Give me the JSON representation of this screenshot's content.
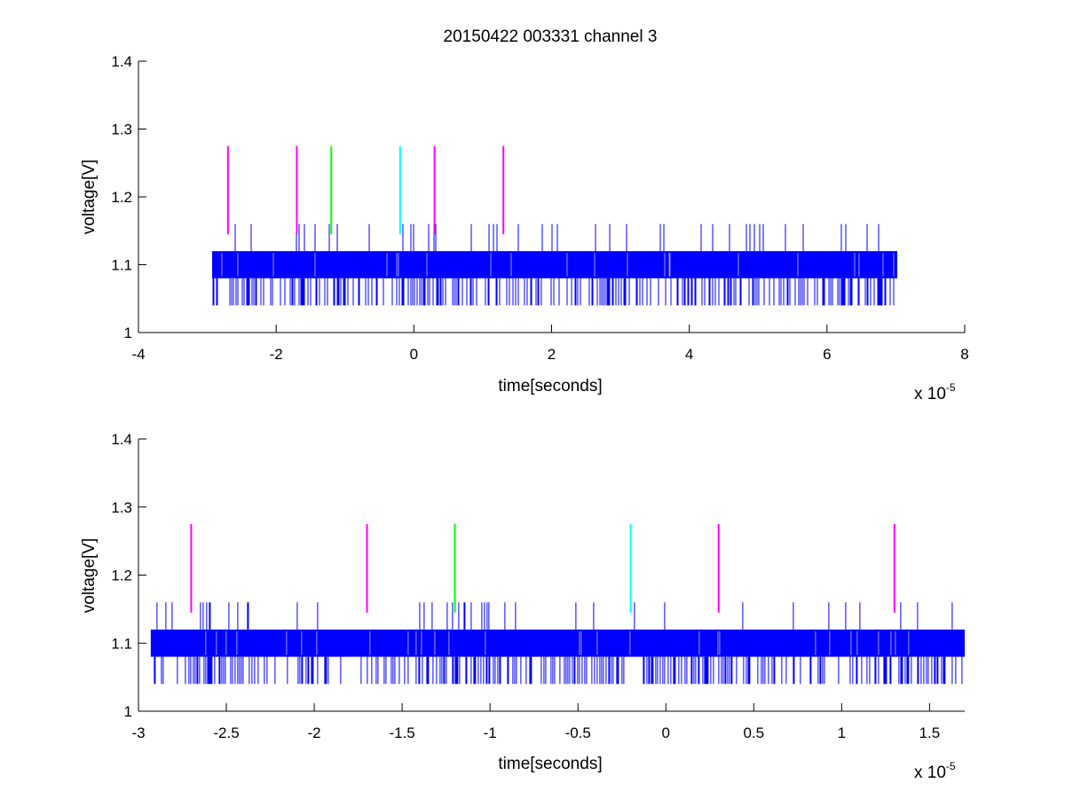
{
  "figure": {
    "title": "20150422 003331 channel 3",
    "background": "#ffffff"
  },
  "chart_data": [
    {
      "type": "line",
      "title": "20150422 003331 channel 3",
      "xlabel": "time[seconds]",
      "ylabel": "voltage[V]",
      "x_multiplier_label": "x 10",
      "x_multiplier_exponent": "-5",
      "xlim": [
        -4,
        8
      ],
      "ylim": [
        1,
        1.4
      ],
      "xticks": [
        -4,
        -2,
        0,
        2,
        4,
        6,
        8
      ],
      "xtick_labels": [
        "-4",
        "-2",
        "0",
        "2",
        "4",
        "6",
        "8"
      ],
      "yticks": [
        1,
        1.1,
        1.2,
        1.3,
        1.4
      ],
      "ytick_labels": [
        "1",
        "1.1",
        "1.2",
        "1.3",
        "1.4"
      ],
      "grid": false,
      "series": [
        {
          "signal": "digitized voltage trace",
          "color": "#0000ff",
          "x_range": [
            -2.93,
            7.02
          ],
          "levels": [
            1.04,
            1.08,
            1.12,
            1.16
          ],
          "band": [
            1.08,
            1.12
          ],
          "upper_spike_level": 1.16,
          "lower_spike_level": 1.04
        }
      ],
      "markers": [
        {
          "x": -2.7,
          "y0": 1.145,
          "y1": 1.275,
          "color": "#ff00ff"
        },
        {
          "x": -1.7,
          "y0": 1.145,
          "y1": 1.275,
          "color": "#ff00ff"
        },
        {
          "x": -1.2,
          "y0": 1.145,
          "y1": 1.275,
          "color": "#00ff00"
        },
        {
          "x": -0.2,
          "y0": 1.145,
          "y1": 1.275,
          "color": "#00ffff"
        },
        {
          "x": 0.3,
          "y0": 1.145,
          "y1": 1.275,
          "color": "#ff00ff"
        },
        {
          "x": 1.3,
          "y0": 1.145,
          "y1": 1.275,
          "color": "#ff00ff"
        }
      ]
    },
    {
      "type": "line",
      "title": "",
      "xlabel": "time[seconds]",
      "ylabel": "voltage[V]",
      "x_multiplier_label": "x 10",
      "x_multiplier_exponent": "-5",
      "xlim": [
        -3,
        1.7
      ],
      "ylim": [
        1,
        1.4
      ],
      "xticks": [
        -3,
        -2.5,
        -2,
        -1.5,
        -1,
        -0.5,
        0,
        0.5,
        1,
        1.5
      ],
      "xtick_labels": [
        "-3",
        "-2.5",
        "-2",
        "-1.5",
        "-1",
        "-0.5",
        "0",
        "0.5",
        "1",
        "1.5"
      ],
      "yticks": [
        1,
        1.1,
        1.2,
        1.3,
        1.4
      ],
      "ytick_labels": [
        "1",
        "1.1",
        "1.2",
        "1.3",
        "1.4"
      ],
      "grid": false,
      "series": [
        {
          "signal": "digitized voltage trace",
          "color": "#0000ff",
          "x_range": [
            -2.93,
            1.7
          ],
          "levels": [
            1.04,
            1.08,
            1.12,
            1.16
          ],
          "band": [
            1.08,
            1.12
          ],
          "upper_spike_level": 1.16,
          "lower_spike_level": 1.04
        }
      ],
      "markers": [
        {
          "x": -2.7,
          "y0": 1.145,
          "y1": 1.275,
          "color": "#ff00ff"
        },
        {
          "x": -1.7,
          "y0": 1.145,
          "y1": 1.275,
          "color": "#ff00ff"
        },
        {
          "x": -1.2,
          "y0": 1.145,
          "y1": 1.275,
          "color": "#00ff00"
        },
        {
          "x": -0.2,
          "y0": 1.145,
          "y1": 1.275,
          "color": "#00ffff"
        },
        {
          "x": 0.3,
          "y0": 1.145,
          "y1": 1.275,
          "color": "#ff00ff"
        },
        {
          "x": 1.3,
          "y0": 1.145,
          "y1": 1.275,
          "color": "#ff00ff"
        }
      ]
    }
  ]
}
